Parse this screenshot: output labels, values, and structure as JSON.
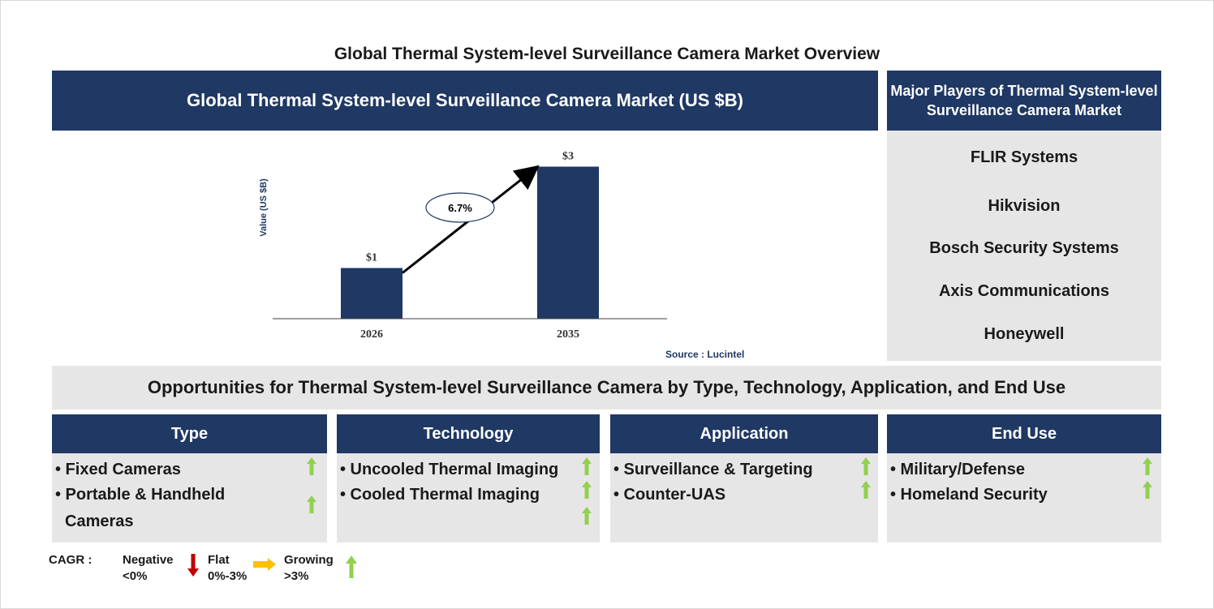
{
  "page_title": "Global Thermal System-level Surveillance Camera Market Overview",
  "chart_header": "Global Thermal System-level Surveillance Camera Market (US $B)",
  "players": {
    "header": "Major Players of Thermal System-level Surveillance Camera Market",
    "items": [
      "FLIR Systems",
      "Hikvision",
      "Bosch Security Systems",
      "Axis Communications",
      "Honeywell"
    ]
  },
  "chart_data": {
    "type": "bar",
    "categories": [
      "2026",
      "2035"
    ],
    "values": [
      1,
      3
    ],
    "value_labels": [
      "$1",
      "$3"
    ],
    "ylabel": "Value (US $B)",
    "annotation": "6.7%",
    "source": "Source : Lucintel",
    "ylim": [
      0,
      3.2
    ]
  },
  "opportunities": {
    "title": "Opportunities for Thermal System-level Surveillance Camera by Type, Technology, Application, and End Use",
    "categories": [
      {
        "name": "Type",
        "items": [
          "• Fixed Cameras",
          "• Portable & Handheld",
          "Cameras"
        ]
      },
      {
        "name": "Technology",
        "items": [
          "• Uncooled Thermal Imaging",
          "• Cooled Thermal Imaging"
        ]
      },
      {
        "name": "Application",
        "items": [
          "• Surveillance & Targeting",
          "• Counter-UAS"
        ]
      },
      {
        "name": "End Use",
        "items": [
          "• Military/Defense",
          "• Homeland Security"
        ]
      }
    ]
  },
  "legend": {
    "label": "CAGR :",
    "negative": [
      "Negative",
      "<0%"
    ],
    "flat": [
      "Flat",
      "0%-3%"
    ],
    "growing": [
      "Growing",
      ">3%"
    ]
  },
  "colors": {
    "navy": "#1f3864",
    "grey": "#e7e6e6",
    "green": "#92d050",
    "red": "#c00000",
    "yellow": "#ffc000"
  }
}
